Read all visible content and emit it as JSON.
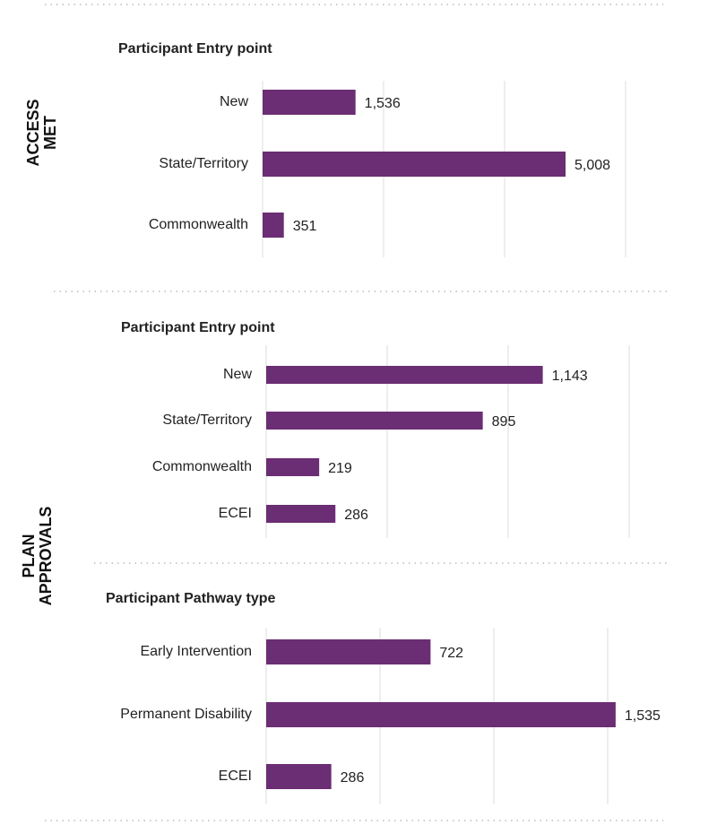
{
  "sections": [
    {
      "label": "ACCESS MET"
    },
    {
      "label": "PLAN APPROVALS"
    }
  ],
  "chart_data": [
    {
      "type": "bar",
      "orientation": "horizontal",
      "title": "Participant Entry point",
      "categories": [
        "New",
        "State/Territory",
        "Commonwealth"
      ],
      "values": [
        1536,
        5008,
        351
      ],
      "value_labels": [
        "1,536",
        "5,008",
        "351"
      ],
      "color": "#6b2d73",
      "xlim": [
        0,
        6000
      ],
      "xticks": [
        0,
        2000,
        4000,
        6000
      ],
      "grid": true
    },
    {
      "type": "bar",
      "orientation": "horizontal",
      "title": "Participant Entry point",
      "categories": [
        "New",
        "State/Territory",
        "Commonwealth",
        "ECEI"
      ],
      "values": [
        1143,
        895,
        219,
        286
      ],
      "value_labels": [
        "1,143",
        "895",
        "219",
        "286"
      ],
      "color": "#6b2d73",
      "xlim": [
        0,
        1500
      ],
      "xticks": [
        0,
        500,
        1000,
        1500
      ],
      "grid": true
    },
    {
      "type": "bar",
      "orientation": "horizontal",
      "title": "Participant Pathway type",
      "categories": [
        "Early Intervention",
        "Permanent Disability",
        "ECEI"
      ],
      "values": [
        722,
        1535,
        286
      ],
      "value_labels": [
        "722",
        "1,535",
        "286"
      ],
      "color": "#6b2d73",
      "xlim": [
        0,
        1500
      ],
      "xticks": [
        0,
        500,
        1000,
        1500
      ],
      "grid": true
    }
  ]
}
